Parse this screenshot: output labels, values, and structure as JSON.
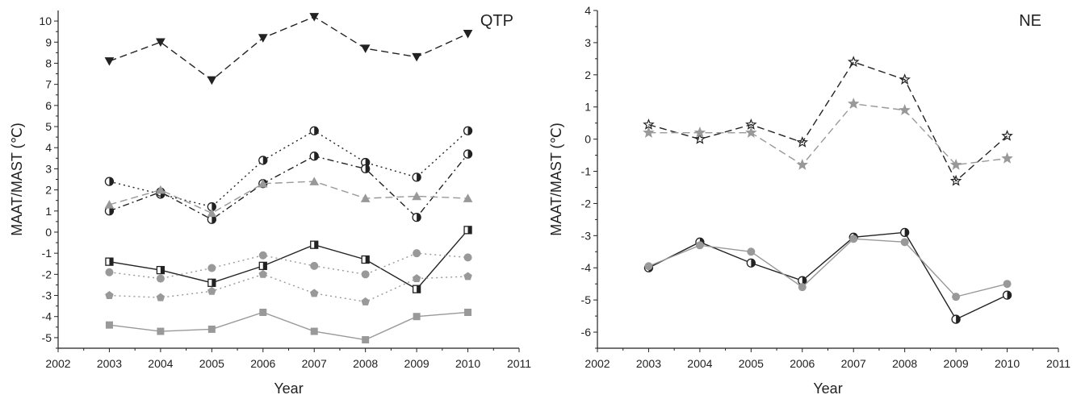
{
  "chart_data": [
    {
      "type": "line",
      "panel_label": "QTP",
      "xlabel": "Year",
      "ylabel": "MAAT/MAST (℃)",
      "xlim": [
        2002,
        2011
      ],
      "ylim": [
        -5.5,
        10.5
      ],
      "x_ticks": [
        2002,
        2003,
        2004,
        2005,
        2006,
        2007,
        2008,
        2009,
        2010,
        2011
      ],
      "y_ticks": [
        -5,
        -4,
        -3,
        -2,
        -1,
        0,
        1,
        2,
        3,
        4,
        5,
        6,
        7,
        8,
        9,
        10
      ],
      "grid": false,
      "x": [
        2003,
        2004,
        2005,
        2006,
        2007,
        2008,
        2009,
        2010
      ],
      "series": [
        {
          "marker": "triangle-down",
          "line_style": "dashed",
          "color": "#222222",
          "values": [
            8.1,
            9.0,
            7.2,
            9.2,
            10.2,
            8.7,
            8.3,
            9.4
          ]
        },
        {
          "marker": "half-circle",
          "line_style": "dotted",
          "color": "#222222",
          "values": [
            2.4,
            1.8,
            1.2,
            3.4,
            4.8,
            3.3,
            2.6,
            4.8
          ]
        },
        {
          "marker": "half-circle",
          "line_style": "dash-dot",
          "color": "#222222",
          "values": [
            1.0,
            1.9,
            0.6,
            2.3,
            3.6,
            3.0,
            0.7,
            3.7
          ]
        },
        {
          "marker": "triangle-up",
          "line_style": "dashed",
          "color": "#999999",
          "values": [
            1.3,
            2.0,
            0.9,
            2.3,
            2.4,
            1.6,
            1.7,
            1.6
          ]
        },
        {
          "marker": "half-square",
          "line_style": "solid",
          "color": "#222222",
          "values": [
            -1.4,
            -1.8,
            -2.4,
            -1.6,
            -0.6,
            -1.3,
            -2.7,
            0.1
          ]
        },
        {
          "marker": "circle",
          "line_style": "dotted",
          "color": "#999999",
          "values": [
            -1.9,
            -2.2,
            -1.7,
            -1.1,
            -1.6,
            -2.0,
            -1.0,
            -1.2
          ]
        },
        {
          "marker": "pentagon",
          "line_style": "dotted",
          "color": "#999999",
          "values": [
            -3.0,
            -3.1,
            -2.8,
            -2.0,
            -2.9,
            -3.3,
            -2.2,
            -2.1
          ]
        },
        {
          "marker": "square",
          "line_style": "solid",
          "color": "#999999",
          "values": [
            -4.4,
            -4.7,
            -4.6,
            -3.8,
            -4.7,
            -5.1,
            -4.0,
            -3.8
          ]
        }
      ]
    },
    {
      "type": "line",
      "panel_label": "NE",
      "xlabel": "Year",
      "ylabel": "MAAT/MAST (℃)",
      "xlim": [
        2002,
        2011
      ],
      "ylim": [
        -6.5,
        4
      ],
      "x_ticks": [
        2002,
        2003,
        2004,
        2005,
        2006,
        2007,
        2008,
        2009,
        2010,
        2011
      ],
      "y_ticks": [
        -6,
        -5,
        -4,
        -3,
        -2,
        -1,
        0,
        1,
        2,
        3,
        4
      ],
      "grid": false,
      "x": [
        2003,
        2004,
        2005,
        2006,
        2007,
        2008,
        2009,
        2010
      ],
      "series": [
        {
          "marker": "star",
          "line_style": "dashed",
          "color": "#222222",
          "values": [
            0.45,
            0.0,
            0.45,
            -0.1,
            2.4,
            1.85,
            -1.3,
            0.1
          ]
        },
        {
          "marker": "star",
          "line_style": "dashed",
          "color": "#999999",
          "values": [
            0.2,
            0.2,
            0.2,
            -0.8,
            1.1,
            0.9,
            -0.8,
            -0.6
          ]
        },
        {
          "marker": "half-circle",
          "line_style": "solid",
          "color": "#222222",
          "values": [
            -4.0,
            -3.2,
            -3.85,
            -4.4,
            -3.05,
            -2.9,
            -5.6,
            -4.85
          ]
        },
        {
          "marker": "circle",
          "line_style": "solid",
          "color": "#999999",
          "values": [
            -3.95,
            -3.3,
            -3.5,
            -4.6,
            -3.1,
            -3.2,
            -4.9,
            -4.5
          ]
        }
      ]
    }
  ]
}
